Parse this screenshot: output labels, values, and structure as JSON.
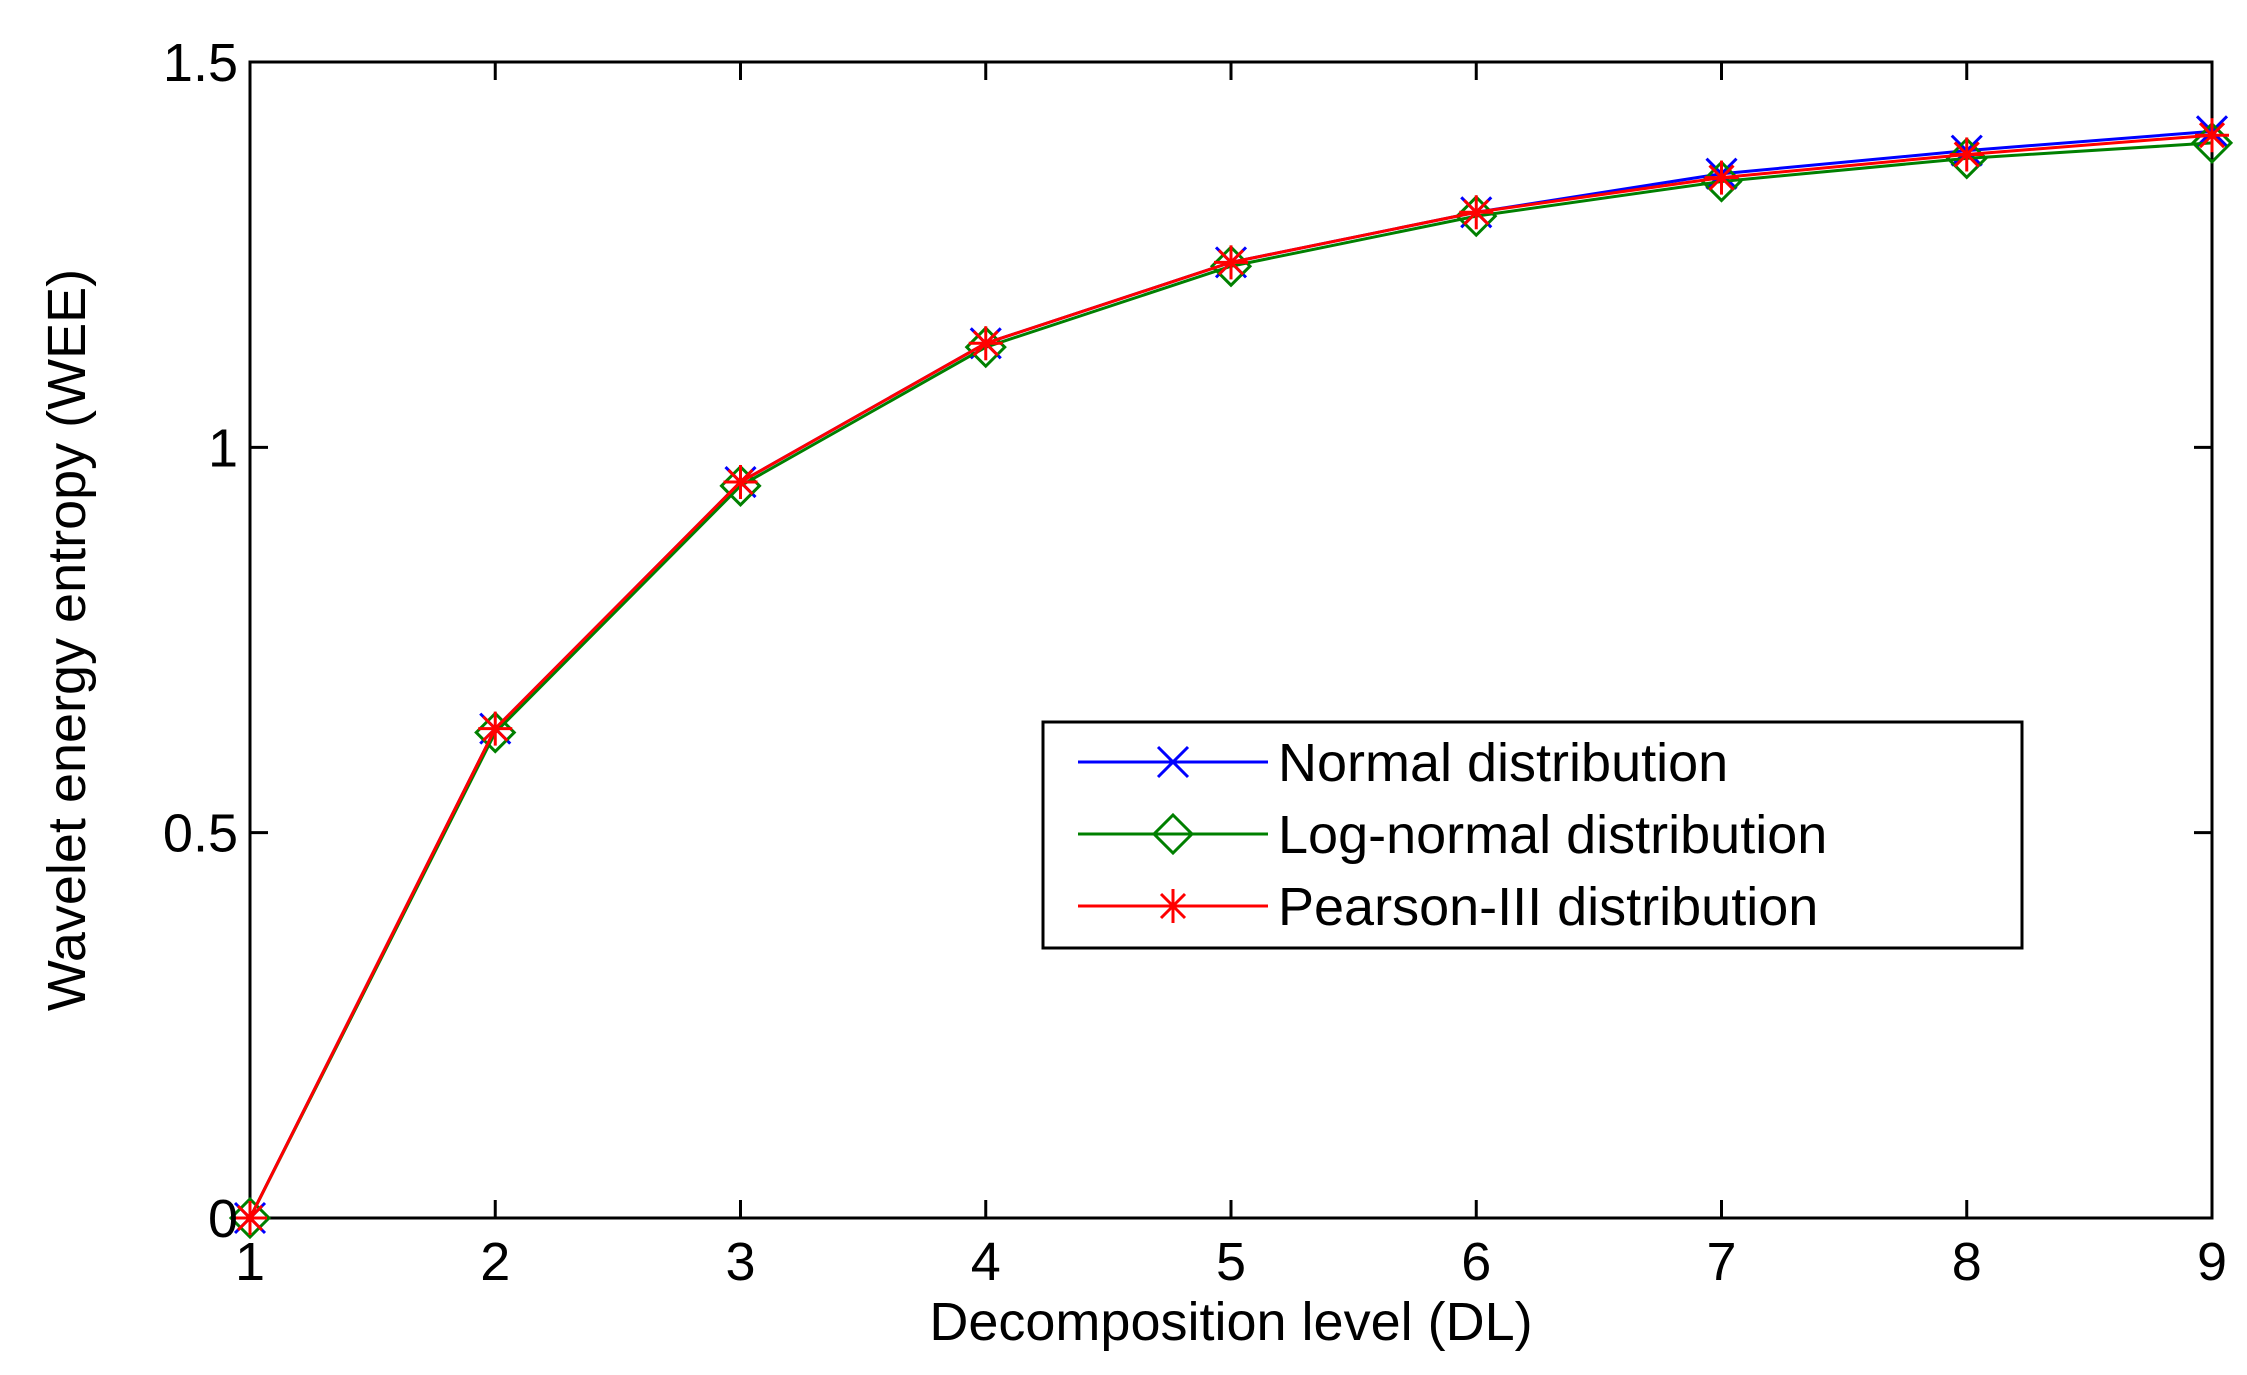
{
  "chart_data": {
    "type": "line",
    "title": "",
    "xlabel": "Decomposition level (DL)",
    "ylabel": "Wavelet energy entropy (WEE)",
    "x": [
      1,
      2,
      3,
      4,
      5,
      6,
      7,
      8,
      9
    ],
    "xlim": [
      1,
      9
    ],
    "ylim": [
      0,
      1.5
    ],
    "xticks": [
      "1",
      "2",
      "3",
      "4",
      "5",
      "6",
      "7",
      "8",
      "9"
    ],
    "yticks": [
      "0",
      "0.5",
      "1",
      "1.5"
    ],
    "grid": false,
    "legend_position": "center-right",
    "series": [
      {
        "name": "Normal distribution",
        "color": "#0000ff",
        "marker": "x",
        "values": [
          0,
          0.635,
          0.955,
          1.135,
          1.24,
          1.305,
          1.355,
          1.385,
          1.41
        ]
      },
      {
        "name": "Log-normal distribution",
        "color": "#008000",
        "marker": "diamond",
        "values": [
          0,
          0.63,
          0.95,
          1.13,
          1.235,
          1.3,
          1.345,
          1.375,
          1.395
        ]
      },
      {
        "name": "Pearson-III distribution",
        "color": "#ff0000",
        "marker": "asterisk",
        "values": [
          0,
          0.635,
          0.955,
          1.135,
          1.24,
          1.305,
          1.35,
          1.38,
          1.405
        ]
      }
    ]
  }
}
